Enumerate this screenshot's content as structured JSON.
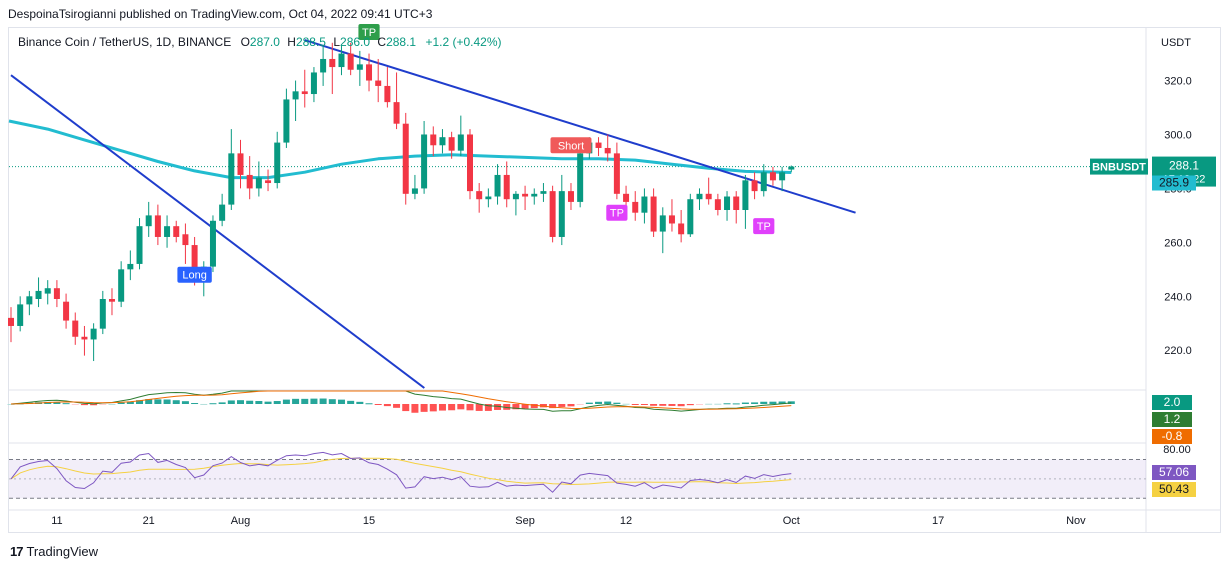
{
  "publisher_line": "DespoinaTsirogianni published on TradingView.com, Oct 04, 2022 09:41 UTC+3",
  "legend": {
    "symbol": "Binance Coin / TetherUS, 1D, BINANCE",
    "o_label": "O",
    "o": "287.0",
    "h_label": "H",
    "h": "288.5",
    "l_label": "L",
    "l": "286.0",
    "c_label": "C",
    "c": "288.1",
    "change": "+1.2 (+0.42%)"
  },
  "footer_brand": "TradingView",
  "colors": {
    "up": "#089981",
    "down": "#f23645",
    "ma": "#22bcd0",
    "trend": "#1f3dcc",
    "rsi": "#7e57c2",
    "rsi_ma": "#f5d142"
  },
  "chart_data": {
    "type": "candlestick",
    "currency_label": "USDT",
    "y_ticks": [
      "320.0",
      "300.0",
      "280.0",
      "260.0",
      "240.0",
      "220.0"
    ],
    "ylim": [
      206,
      338
    ],
    "x_ticks": [
      {
        "i": 5,
        "label": "11"
      },
      {
        "i": 15,
        "label": "21"
      },
      {
        "i": 25,
        "label": "Aug"
      },
      {
        "i": 39,
        "label": "15"
      },
      {
        "i": 56,
        "label": "Sep"
      },
      {
        "i": 67,
        "label": "12"
      },
      {
        "i": 85,
        "label": "Oct"
      },
      {
        "i": 101,
        "label": "17"
      },
      {
        "i": 116,
        "label": "Nov"
      }
    ],
    "candles": [
      {
        "o": 232,
        "h": 236,
        "l": 223,
        "c": 229
      },
      {
        "o": 229,
        "h": 240,
        "l": 227,
        "c": 237
      },
      {
        "o": 237,
        "h": 242,
        "l": 233,
        "c": 240
      },
      {
        "o": 239,
        "h": 247,
        "l": 236,
        "c": 242
      },
      {
        "o": 241,
        "h": 246,
        "l": 237,
        "c": 243
      },
      {
        "o": 243,
        "h": 246,
        "l": 236,
        "c": 239
      },
      {
        "o": 238,
        "h": 241,
        "l": 228,
        "c": 231
      },
      {
        "o": 231,
        "h": 234,
        "l": 222,
        "c": 225
      },
      {
        "o": 225,
        "h": 229,
        "l": 218,
        "c": 224
      },
      {
        "o": 224,
        "h": 230,
        "l": 216,
        "c": 228
      },
      {
        "o": 228,
        "h": 242,
        "l": 226,
        "c": 239
      },
      {
        "o": 239,
        "h": 243,
        "l": 233,
        "c": 238
      },
      {
        "o": 238,
        "h": 253,
        "l": 236,
        "c": 250
      },
      {
        "o": 250,
        "h": 257,
        "l": 246,
        "c": 252
      },
      {
        "o": 252,
        "h": 269,
        "l": 250,
        "c": 266
      },
      {
        "o": 266,
        "h": 275,
        "l": 262,
        "c": 270
      },
      {
        "o": 270,
        "h": 274,
        "l": 259,
        "c": 262
      },
      {
        "o": 262,
        "h": 270,
        "l": 258,
        "c": 266
      },
      {
        "o": 266,
        "h": 268,
        "l": 260,
        "c": 262
      },
      {
        "o": 263,
        "h": 267,
        "l": 252,
        "c": 259
      },
      {
        "o": 259,
        "h": 262,
        "l": 244,
        "c": 247
      },
      {
        "o": 247,
        "h": 253,
        "l": 240,
        "c": 251
      },
      {
        "o": 251,
        "h": 270,
        "l": 249,
        "c": 268
      },
      {
        "o": 268,
        "h": 278,
        "l": 266,
        "c": 274
      },
      {
        "o": 274,
        "h": 302,
        "l": 272,
        "c": 293
      },
      {
        "o": 293,
        "h": 298,
        "l": 280,
        "c": 285
      },
      {
        "o": 285,
        "h": 292,
        "l": 276,
        "c": 280
      },
      {
        "o": 280,
        "h": 290,
        "l": 277,
        "c": 284
      },
      {
        "o": 283,
        "h": 287,
        "l": 279,
        "c": 282
      },
      {
        "o": 282,
        "h": 301,
        "l": 280,
        "c": 297
      },
      {
        "o": 297,
        "h": 317,
        "l": 295,
        "c": 313
      },
      {
        "o": 313,
        "h": 320,
        "l": 305,
        "c": 316
      },
      {
        "o": 316,
        "h": 324,
        "l": 310,
        "c": 315
      },
      {
        "o": 315,
        "h": 325,
        "l": 312,
        "c": 323
      },
      {
        "o": 323,
        "h": 333,
        "l": 318,
        "c": 328
      },
      {
        "o": 328,
        "h": 334,
        "l": 315,
        "c": 325
      },
      {
        "o": 325,
        "h": 333,
        "l": 322,
        "c": 330
      },
      {
        "o": 330,
        "h": 334,
        "l": 322,
        "c": 324
      },
      {
        "o": 324,
        "h": 331,
        "l": 318,
        "c": 326
      },
      {
        "o": 326,
        "h": 330,
        "l": 316,
        "c": 320
      },
      {
        "o": 320,
        "h": 328,
        "l": 312,
        "c": 318
      },
      {
        "o": 318,
        "h": 325,
        "l": 310,
        "c": 312
      },
      {
        "o": 312,
        "h": 323,
        "l": 302,
        "c": 304
      },
      {
        "o": 304,
        "h": 308,
        "l": 274,
        "c": 278
      },
      {
        "o": 278,
        "h": 285,
        "l": 276,
        "c": 280
      },
      {
        "o": 280,
        "h": 305,
        "l": 278,
        "c": 300
      },
      {
        "o": 300,
        "h": 303,
        "l": 292,
        "c": 296
      },
      {
        "o": 296,
        "h": 302,
        "l": 293,
        "c": 299
      },
      {
        "o": 299,
        "h": 301,
        "l": 291,
        "c": 294
      },
      {
        "o": 294,
        "h": 307,
        "l": 292,
        "c": 300
      },
      {
        "o": 300,
        "h": 302,
        "l": 276,
        "c": 279
      },
      {
        "o": 279,
        "h": 282,
        "l": 271,
        "c": 276
      },
      {
        "o": 276,
        "h": 280,
        "l": 273,
        "c": 277
      },
      {
        "o": 277,
        "h": 289,
        "l": 274,
        "c": 285
      },
      {
        "o": 285,
        "h": 290,
        "l": 273,
        "c": 276
      },
      {
        "o": 276,
        "h": 279,
        "l": 270,
        "c": 278
      },
      {
        "o": 278,
        "h": 281,
        "l": 272,
        "c": 277
      },
      {
        "o": 277,
        "h": 280,
        "l": 274,
        "c": 278
      },
      {
        "o": 278,
        "h": 282,
        "l": 275,
        "c": 279
      },
      {
        "o": 279,
        "h": 281,
        "l": 260,
        "c": 262
      },
      {
        "o": 262,
        "h": 285,
        "l": 259,
        "c": 279
      },
      {
        "o": 279,
        "h": 282,
        "l": 272,
        "c": 275
      },
      {
        "o": 275,
        "h": 295,
        "l": 273,
        "c": 293
      },
      {
        "o": 293,
        "h": 299,
        "l": 291,
        "c": 297
      },
      {
        "o": 297,
        "h": 299,
        "l": 292,
        "c": 295
      },
      {
        "o": 295,
        "h": 300,
        "l": 290,
        "c": 293
      },
      {
        "o": 293,
        "h": 297,
        "l": 276,
        "c": 278
      },
      {
        "o": 278,
        "h": 281,
        "l": 272,
        "c": 275
      },
      {
        "o": 275,
        "h": 279,
        "l": 268,
        "c": 271
      },
      {
        "o": 271,
        "h": 280,
        "l": 267,
        "c": 277
      },
      {
        "o": 277,
        "h": 280,
        "l": 262,
        "c": 264
      },
      {
        "o": 264,
        "h": 273,
        "l": 256,
        "c": 270
      },
      {
        "o": 270,
        "h": 276,
        "l": 264,
        "c": 267
      },
      {
        "o": 267,
        "h": 272,
        "l": 260,
        "c": 263
      },
      {
        "o": 263,
        "h": 278,
        "l": 262,
        "c": 276
      },
      {
        "o": 276,
        "h": 280,
        "l": 272,
        "c": 278
      },
      {
        "o": 278,
        "h": 284,
        "l": 274,
        "c": 276
      },
      {
        "o": 276,
        "h": 278,
        "l": 270,
        "c": 272
      },
      {
        "o": 272,
        "h": 279,
        "l": 268,
        "c": 277
      },
      {
        "o": 277,
        "h": 279,
        "l": 267,
        "c": 272
      },
      {
        "o": 272,
        "h": 285,
        "l": 265,
        "c": 283
      },
      {
        "o": 283,
        "h": 286,
        "l": 276,
        "c": 279
      },
      {
        "o": 279,
        "h": 289,
        "l": 277,
        "c": 286
      },
      {
        "o": 286,
        "h": 288,
        "l": 281,
        "c": 283
      },
      {
        "o": 283,
        "h": 288,
        "l": 279,
        "c": 286
      },
      {
        "o": 287,
        "h": 288.5,
        "l": 286,
        "c": 288.1
      }
    ],
    "moving_average": [
      {
        "i": 0,
        "v": 305
      },
      {
        "i": 4,
        "v": 302
      },
      {
        "i": 8,
        "v": 298
      },
      {
        "i": 12,
        "v": 294
      },
      {
        "i": 16,
        "v": 290
      },
      {
        "i": 20,
        "v": 286.5
      },
      {
        "i": 24,
        "v": 284
      },
      {
        "i": 28,
        "v": 284
      },
      {
        "i": 32,
        "v": 286
      },
      {
        "i": 36,
        "v": 289
      },
      {
        "i": 40,
        "v": 291
      },
      {
        "i": 44,
        "v": 292
      },
      {
        "i": 48,
        "v": 292.5
      },
      {
        "i": 52,
        "v": 292
      },
      {
        "i": 56,
        "v": 291.5
      },
      {
        "i": 60,
        "v": 291
      },
      {
        "i": 64,
        "v": 291
      },
      {
        "i": 68,
        "v": 290.5
      },
      {
        "i": 72,
        "v": 289
      },
      {
        "i": 76,
        "v": 287.5
      },
      {
        "i": 80,
        "v": 286.3
      },
      {
        "i": 85,
        "v": 285.9
      }
    ],
    "trendlines": [
      {
        "i1": 0,
        "v1": 322,
        "i2": 59,
        "v2": 170
      },
      {
        "i1": 32,
        "v1": 335,
        "i2": 92,
        "v2": 271
      }
    ],
    "signals": [
      {
        "i": 20,
        "v": 248,
        "text": "Long",
        "color": "#2962ff"
      },
      {
        "i": 39,
        "v": 338,
        "text": "TP",
        "color": "#2e9e4b"
      },
      {
        "i": 61,
        "v": 296,
        "text": "Short",
        "color": "#f05a5a"
      },
      {
        "i": 66,
        "v": 271,
        "text": "TP",
        "color": "#e040fb"
      },
      {
        "i": 82,
        "v": 266,
        "text": "TP",
        "color": "#e040fb"
      }
    ],
    "price_tags": [
      {
        "v": 288.1,
        "label": "BNBUSDT",
        "value": "288.1",
        "sub": "17:18:22",
        "color": "#089981"
      },
      {
        "v": 285.9,
        "value": "285.9",
        "color": "#22bcd0"
      }
    ],
    "macd": {
      "ylim": [
        -8,
        8
      ],
      "tags": [
        {
          "v": 2.0,
          "value": "2.0",
          "color": "#089981"
        },
        {
          "v": 1.2,
          "value": "1.2",
          "color": "#2e7d32"
        },
        {
          "v": -0.8,
          "value": "-0.8",
          "color": "#ef6c00"
        }
      ]
    },
    "rsi": {
      "ylim": [
        20,
        85
      ],
      "top_label": "80.00",
      "band": [
        30,
        70
      ],
      "tags": [
        {
          "v": 57.06,
          "value": "57.06",
          "color": "#7e57c2"
        },
        {
          "v": 50.43,
          "value": "50.43",
          "color": "#f5d142"
        }
      ]
    }
  }
}
